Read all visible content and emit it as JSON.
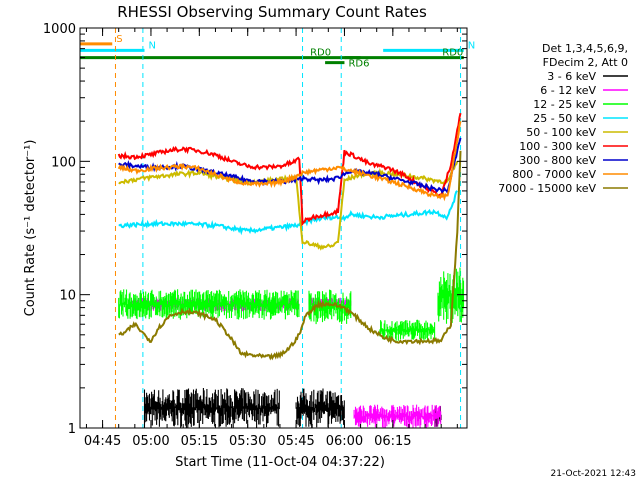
{
  "chart_data": {
    "type": "line",
    "title": "RHESSI Observing Summary Count Rates",
    "xlabel": "Start Time (11-Oct-04 04:37:22)",
    "ylabel": "Count Rate (s⁻¹ detector⁻¹)",
    "y_scale": "log",
    "ylim": [
      1,
      1000
    ],
    "xlim_minutes": [
      38,
      158
    ],
    "x_ticks": [
      {
        "min": 45,
        "label": "04:45"
      },
      {
        "min": 60,
        "label": "05:00"
      },
      {
        "min": 75,
        "label": "05:15"
      },
      {
        "min": 90,
        "label": "05:30"
      },
      {
        "min": 105,
        "label": "05:45"
      },
      {
        "min": 120,
        "label": "06:00"
      },
      {
        "min": 135,
        "label": "06:15"
      }
    ],
    "y_ticks": [
      {
        "value": 1,
        "label": "1"
      },
      {
        "value": 10,
        "label": "10"
      },
      {
        "value": 100,
        "label": "100"
      },
      {
        "value": 1000,
        "label": "1000"
      }
    ],
    "legend_header": [
      "Det 1,3,4,5,6,9,",
      "FDecim 2, Att 0"
    ],
    "stamp": "21-Oct-2021 12:43",
    "flags": [
      {
        "label": "S",
        "color": "#ff8c00",
        "start": 38,
        "end": 48,
        "y": 760
      },
      {
        "label": "N",
        "color": "#00e5ff",
        "start": 38,
        "end": 58,
        "y": 680
      },
      {
        "label": "N",
        "color": "#00e5ff",
        "start": 132,
        "end": 157,
        "y": 680
      },
      {
        "label": "RD0",
        "color": "#008000",
        "start": 38,
        "end": 125,
        "y": 600
      },
      {
        "label": "RD6",
        "color": "#008000",
        "start": 114,
        "end": 120,
        "y": 550
      },
      {
        "label": "RD0",
        "color": "#008000",
        "start": 120,
        "end": 157,
        "y": 600
      }
    ],
    "vlines": [
      {
        "x": 49,
        "color": "#ff8c00"
      },
      {
        "x": 57.5,
        "color": "#00e5ff"
      },
      {
        "x": 107,
        "color": "#00e5ff"
      },
      {
        "x": 119,
        "color": "#00e5ff"
      },
      {
        "x": 156,
        "color": "#00e5ff"
      }
    ],
    "series": [
      {
        "name": "3 - 6 keV",
        "color": "#000000",
        "style": "segments",
        "segments": [
          [
            58,
            100,
            1.0,
            2.0
          ],
          [
            105,
            120,
            1.0,
            2.0
          ],
          [
            148,
            150,
            1.0,
            1.5
          ]
        ]
      },
      {
        "name": "6 - 12 keV",
        "color": "#ff00ff",
        "style": "segments",
        "segments": [
          [
            54,
            106,
            7.5,
            9.5
          ],
          [
            109,
            122,
            8.0,
            9.5
          ],
          [
            123,
            150,
            1.0,
            1.5
          ]
        ]
      },
      {
        "name": "12 - 25 keV",
        "color": "#00ff00",
        "style": "segments",
        "segments": [
          [
            50,
            106,
            6.5,
            11.0
          ],
          [
            109,
            122,
            6.0,
            11.0
          ],
          [
            131,
            148,
            4.5,
            6.5
          ],
          [
            149,
            157,
            6.0,
            16.0
          ]
        ]
      },
      {
        "name": "25 - 50 keV",
        "color": "#00e5ff",
        "style": "line",
        "points": [
          [
            50,
            33
          ],
          [
            60,
            34
          ],
          [
            70,
            34
          ],
          [
            80,
            33
          ],
          [
            90,
            30
          ],
          [
            100,
            32
          ],
          [
            105,
            33
          ],
          [
            107,
            34
          ],
          [
            109,
            36
          ],
          [
            115,
            38
          ],
          [
            120,
            38
          ],
          [
            122,
            40
          ],
          [
            130,
            38
          ],
          [
            140,
            40
          ],
          [
            148,
            42
          ],
          [
            152,
            38
          ],
          [
            155,
            60
          ]
        ]
      },
      {
        "name": "50 - 100 keV",
        "color": "#ccbb00",
        "style": "line",
        "points": [
          [
            50,
            70
          ],
          [
            60,
            76
          ],
          [
            68,
            80
          ],
          [
            75,
            82
          ],
          [
            82,
            75
          ],
          [
            90,
            70
          ],
          [
            98,
            72
          ],
          [
            105,
            76
          ],
          [
            107,
            25
          ],
          [
            112,
            23
          ],
          [
            116,
            23
          ],
          [
            118,
            25
          ],
          [
            120,
            72
          ],
          [
            125,
            80
          ],
          [
            132,
            82
          ],
          [
            140,
            78
          ],
          [
            148,
            72
          ],
          [
            152,
            70
          ],
          [
            155,
            100
          ]
        ]
      },
      {
        "name": "100 - 300 keV",
        "color": "#ff0000",
        "style": "line",
        "points": [
          [
            50,
            110
          ],
          [
            55,
            108
          ],
          [
            60,
            112
          ],
          [
            65,
            120
          ],
          [
            70,
            124
          ],
          [
            75,
            120
          ],
          [
            80,
            112
          ],
          [
            85,
            100
          ],
          [
            90,
            92
          ],
          [
            95,
            90
          ],
          [
            100,
            92
          ],
          [
            104,
            98
          ],
          [
            106,
            105
          ],
          [
            107,
            35
          ],
          [
            110,
            38
          ],
          [
            114,
            40
          ],
          [
            118,
            42
          ],
          [
            120,
            118
          ],
          [
            123,
            110
          ],
          [
            128,
            95
          ],
          [
            133,
            90
          ],
          [
            138,
            80
          ],
          [
            142,
            70
          ],
          [
            147,
            60
          ],
          [
            150,
            55
          ],
          [
            153,
            95
          ],
          [
            156,
            230
          ]
        ]
      },
      {
        "name": "300 - 800 keV",
        "color": "#0000cc",
        "style": "line",
        "points": [
          [
            50,
            95
          ],
          [
            60,
            90
          ],
          [
            70,
            92
          ],
          [
            80,
            82
          ],
          [
            90,
            72
          ],
          [
            100,
            70
          ],
          [
            105,
            72
          ],
          [
            107,
            75
          ],
          [
            112,
            72
          ],
          [
            117,
            74
          ],
          [
            119,
            78
          ],
          [
            122,
            85
          ],
          [
            130,
            80
          ],
          [
            140,
            70
          ],
          [
            148,
            62
          ],
          [
            152,
            60
          ],
          [
            156,
            150
          ]
        ]
      },
      {
        "name": "800 - 7000 keV",
        "color": "#ff8c00",
        "style": "line",
        "points": [
          [
            50,
            90
          ],
          [
            55,
            85
          ],
          [
            60,
            88
          ],
          [
            65,
            90
          ],
          [
            70,
            92
          ],
          [
            75,
            88
          ],
          [
            80,
            80
          ],
          [
            85,
            72
          ],
          [
            90,
            68
          ],
          [
            95,
            67
          ],
          [
            100,
            70
          ],
          [
            104,
            75
          ],
          [
            107,
            82
          ],
          [
            112,
            86
          ],
          [
            118,
            90
          ],
          [
            122,
            85
          ],
          [
            128,
            78
          ],
          [
            135,
            70
          ],
          [
            142,
            62
          ],
          [
            148,
            55
          ],
          [
            152,
            55
          ],
          [
            156,
            200
          ]
        ]
      },
      {
        "name": "7000 - 15000 keV",
        "color": "#8b7a00",
        "style": "line",
        "points": [
          [
            50,
            5.0
          ],
          [
            52,
            5.2
          ],
          [
            55,
            6.0
          ],
          [
            58,
            5.0
          ],
          [
            60,
            4.5
          ],
          [
            62,
            5.5
          ],
          [
            66,
            7.0
          ],
          [
            70,
            7.5
          ],
          [
            75,
            7.2
          ],
          [
            80,
            6.5
          ],
          [
            84,
            5.0
          ],
          [
            88,
            3.6
          ],
          [
            92,
            3.5
          ],
          [
            96,
            3.4
          ],
          [
            100,
            3.5
          ],
          [
            103,
            4.0
          ],
          [
            106,
            5.0
          ],
          [
            108,
            7.0
          ],
          [
            112,
            8.5
          ],
          [
            116,
            8.5
          ],
          [
            120,
            8.0
          ],
          [
            123,
            7.0
          ],
          [
            128,
            5.5
          ],
          [
            132,
            4.8
          ],
          [
            136,
            4.5
          ],
          [
            140,
            4.5
          ],
          [
            145,
            4.5
          ],
          [
            150,
            4.5
          ],
          [
            153,
            6.0
          ],
          [
            155,
            30
          ],
          [
            156,
            120
          ]
        ]
      }
    ]
  }
}
